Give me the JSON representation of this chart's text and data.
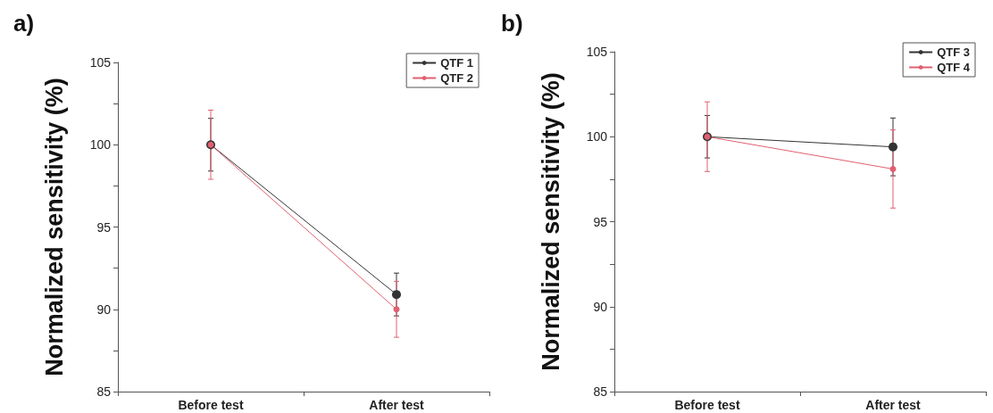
{
  "chart_data": [
    {
      "type": "line",
      "title": "a)",
      "ylabel": "Normalized sensitivity (%)",
      "categories": [
        "Before test",
        "After test"
      ],
      "series": [
        {
          "name": "QTF 1",
          "color": "#333333",
          "values": [
            100,
            90.9
          ],
          "errors": [
            1.6,
            1.3
          ]
        },
        {
          "name": "QTF 2",
          "color": "#e06070",
          "values": [
            100,
            90
          ],
          "errors": [
            2.1,
            1.7
          ]
        }
      ],
      "ylim": [
        85,
        105
      ],
      "yticks": [
        85,
        {
          "value": 87.5,
          "label": null
        },
        90,
        {
          "value": 92.5,
          "label": null
        },
        95,
        {
          "value": 97.5,
          "label": null
        },
        100,
        {
          "value": 102.5,
          "label": null
        },
        105
      ],
      "grid": false,
      "legend": "top right",
      "marker": "circle"
    },
    {
      "type": "line",
      "title": "b)",
      "ylabel": "Normalized sensitivity (%)",
      "categories": [
        "Before test",
        "After test"
      ],
      "series": [
        {
          "name": "QTF 3",
          "color": "#333333",
          "values": [
            100,
            99.4
          ],
          "errors": [
            1.25,
            1.7
          ]
        },
        {
          "name": "QTF 4",
          "color": "#e06070",
          "values": [
            100,
            98.1
          ],
          "errors": [
            2.05,
            2.3
          ]
        }
      ],
      "ylim": [
        85,
        105
      ],
      "yticks": [
        85,
        {
          "value": 87.5,
          "label": null
        },
        90,
        {
          "value": 92.5,
          "label": null
        },
        95,
        {
          "value": 97.5,
          "label": null
        },
        100,
        {
          "value": 102.5,
          "label": null
        },
        105
      ],
      "grid": false,
      "legend": "top right",
      "marker": "circle"
    }
  ]
}
